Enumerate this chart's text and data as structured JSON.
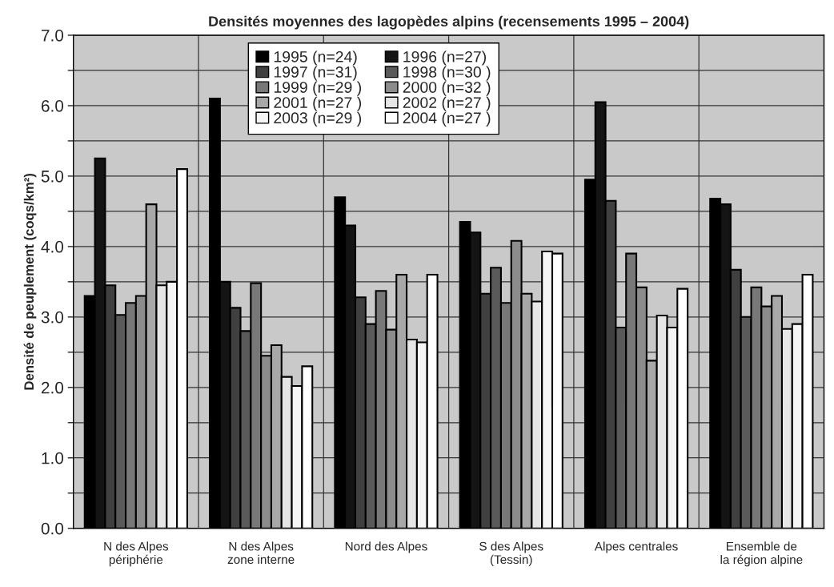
{
  "chart_data": {
    "type": "bar",
    "title": "Densités moyennes des lagopèdes alpins (recensements 1995 – 2004)",
    "ylabel": "Densité de peuplement (coqs/km²)",
    "categories": [
      "N des Alpes\npériphérie",
      "N des Alpes\nzone interne",
      "Nord des Alpes",
      "S des Alpes\n(Tessin)",
      "Alpes centrales",
      "Ensemble de\nla région alpine"
    ],
    "series": [
      {
        "name": "1995 (n=24)",
        "color": "#000000",
        "values": [
          3.3,
          6.1,
          4.7,
          4.35,
          4.95,
          4.68
        ]
      },
      {
        "name": "1996 (n=27)",
        "color": "#141414",
        "values": [
          5.25,
          3.5,
          4.3,
          4.2,
          6.05,
          4.6
        ]
      },
      {
        "name": "1997 (n=31)",
        "color": "#404040",
        "values": [
          3.45,
          3.13,
          3.28,
          3.33,
          4.65,
          3.67
        ]
      },
      {
        "name": "1998 (n=30 )",
        "color": "#5a5a5a",
        "values": [
          3.03,
          2.8,
          2.9,
          3.7,
          2.85,
          3.0
        ]
      },
      {
        "name": "1999 (n=29 )",
        "color": "#787878",
        "values": [
          3.2,
          3.48,
          3.37,
          3.2,
          3.9,
          3.42
        ]
      },
      {
        "name": "2000 (n=32 )",
        "color": "#8c8c8c",
        "values": [
          3.3,
          2.45,
          2.82,
          4.08,
          3.42,
          3.15
        ]
      },
      {
        "name": "2001 (n=27 )",
        "color": "#a8a8a8",
        "values": [
          4.6,
          2.6,
          3.6,
          3.33,
          2.38,
          3.3
        ]
      },
      {
        "name": "2002 (n=27 )",
        "color": "#e6e6e6",
        "values": [
          3.45,
          2.15,
          2.68,
          3.22,
          3.02,
          2.83
        ]
      },
      {
        "name": "2003 (n=29 )",
        "color": "#f5f5f5",
        "values": [
          3.5,
          2.02,
          2.64,
          3.93,
          2.85,
          2.9
        ]
      },
      {
        "name": "2004 (n=27 )",
        "color": "#ffffff",
        "values": [
          5.1,
          2.3,
          3.6,
          3.9,
          3.4,
          3.6
        ]
      }
    ],
    "ylim": [
      0,
      7
    ],
    "yticks": [
      {
        "value": 0,
        "label": "0.0"
      },
      {
        "value": 0.5,
        "label": null
      },
      {
        "value": 1,
        "label": "1.0"
      },
      {
        "value": 1.5,
        "label": null
      },
      {
        "value": 2,
        "label": "2.0"
      },
      {
        "value": 2.5,
        "label": null
      },
      {
        "value": 3,
        "label": "3.0"
      },
      {
        "value": 3.5,
        "label": null
      },
      {
        "value": 4,
        "label": "4.0"
      },
      {
        "value": 4.5,
        "label": null
      },
      {
        "value": 5,
        "label": "5.0"
      },
      {
        "value": 5.5,
        "label": null
      },
      {
        "value": 6,
        "label": "6.0"
      },
      {
        "value": 6.5,
        "label": null
      },
      {
        "value": 7,
        "label": "7.0"
      }
    ],
    "grid": true,
    "legend": "top"
  }
}
